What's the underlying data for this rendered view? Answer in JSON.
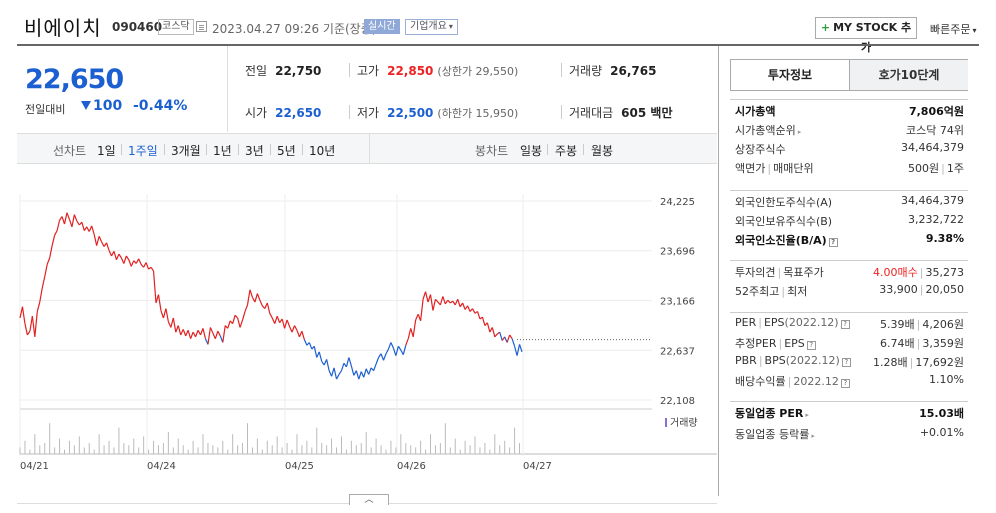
{
  "header": {
    "name": "비에이치",
    "code": "090460",
    "market": "코스닥",
    "datetime": "2023.04.27 09:26 기준(장중)",
    "realtime": "실시간",
    "company_overview": "기업개요",
    "mystock": "MY STOCK 추가",
    "quick_order": "빠른주문"
  },
  "price": {
    "current": "22,650",
    "compare_label": "전일대비",
    "change": "100",
    "rate": "-0.44%"
  },
  "stats": {
    "prev_label": "전일",
    "prev": "22,750",
    "high_label": "고가",
    "high": "22,850",
    "upper_limit": "(상한가 29,550)",
    "volume_label": "거래량",
    "volume": "26,765",
    "open_label": "시가",
    "open": "22,650",
    "low_label": "저가",
    "low": "22,500",
    "lower_limit": "(하한가 15,950)",
    "amount_label": "거래대금",
    "amount": "605 백만"
  },
  "chart_tabs": {
    "line_label": "선차트",
    "line_periods": [
      "1일",
      "1주일",
      "3개월",
      "1년",
      "3년",
      "5년",
      "10년"
    ],
    "active": "1주일",
    "candle_label": "봉차트",
    "candle_periods": [
      "일봉",
      "주봉",
      "월봉"
    ]
  },
  "chart_data": {
    "type": "line",
    "title": "",
    "x_ticks": [
      "04/21",
      "04/24",
      "04/25",
      "04/26",
      "04/27"
    ],
    "y_ticks": [
      24225,
      23696,
      23166,
      22637,
      22108
    ],
    "ylim": [
      22108,
      24225
    ],
    "prev_close": 22750,
    "volume_label": "거래량",
    "colors": {
      "up": "#e22020",
      "down": "#1c5fd1"
    },
    "series": [
      {
        "values": [
          22980,
          23100,
          22920,
          22800,
          22840,
          23000,
          22780,
          23050,
          23150,
          23300,
          23420,
          23550,
          23620,
          23750,
          23860,
          23910,
          24020,
          24060,
          23980,
          24100,
          24030,
          23950,
          24080,
          24010,
          23970,
          24000,
          23910,
          23950,
          23900,
          23960,
          23870,
          23750,
          23850,
          23790,
          23740,
          23780,
          23700,
          23640,
          23690,
          23600,
          23660,
          23620,
          23560,
          23640,
          23600,
          23530,
          23590,
          23560,
          23610,
          23550,
          23520,
          23570,
          23500,
          23520,
          23480,
          23140,
          23230,
          23060,
          22980,
          23080,
          22940,
          22880,
          22980,
          22830,
          22900,
          22800,
          22860,
          22790,
          22850,
          22760,
          22830,
          22780,
          22850,
          22800,
          22870,
          22760,
          22700,
          22880,
          22820,
          22760,
          22840,
          22790,
          22720,
          22900,
          22870,
          22950,
          22920,
          23010,
          22980,
          22880,
          22960,
          23050,
          23120,
          23280,
          23200,
          23150,
          23240,
          23170,
          23110,
          23080,
          23140,
          23030,
          22980,
          22920,
          23000,
          22930,
          22970,
          22870,
          22960,
          22890,
          22830,
          22900,
          22850,
          22780,
          22840,
          22750,
          22690,
          22720,
          22650,
          22680,
          22560,
          22620,
          22520,
          22480,
          22540,
          22420,
          22360,
          22450,
          22330,
          22380,
          22420,
          22500,
          22460,
          22560,
          22470,
          22370,
          22420,
          22330,
          22410,
          22350,
          22440,
          22380,
          22450,
          22420,
          22490,
          22560,
          22600,
          22530,
          22600,
          22650,
          22720,
          22660,
          22580,
          22680,
          22640,
          22590,
          22690,
          22760,
          22870,
          22780,
          22960,
          23020,
          22950,
          23180,
          23260,
          23150,
          23230,
          23060,
          23180,
          23150,
          23120,
          23210,
          23130,
          23170,
          23140,
          23160,
          23120,
          23180,
          23100,
          23140,
          23070,
          23110,
          23050,
          23080,
          23030,
          23050,
          22970,
          22990,
          22900,
          22930,
          22830,
          22880,
          22780,
          22810,
          22830,
          22740,
          22780,
          22720,
          22800,
          22760,
          22680,
          22580,
          22700,
          22620
        ]
      }
    ]
  },
  "right_panel": {
    "tab_active": "투자정보",
    "tab_other": "호가10단계",
    "g1": [
      {
        "l": "시가총액",
        "r": "7,806억원"
      },
      {
        "l": "시가총액순위",
        "r": "코스닥 74위"
      },
      {
        "l": "상장주식수",
        "r": "34,464,379"
      },
      {
        "l": "액면가",
        "l2": "매매단위",
        "r": "500원",
        "r2": "1주"
      }
    ],
    "g2": [
      {
        "l": "외국인한도주식수(A)",
        "r": "34,464,379"
      },
      {
        "l": "외국인보유주식수(B)",
        "r": "3,232,722"
      },
      {
        "l": "외국인소진율(B/A)",
        "r": "9.38%"
      }
    ],
    "g3": [
      {
        "l": "투자의견",
        "l2": "목표주가",
        "r": "4.00매수",
        "r2": "35,273"
      },
      {
        "l": "52주최고",
        "l2": "최저",
        "r": "33,900",
        "r2": "20,050"
      }
    ],
    "g4": [
      {
        "l": "PER",
        "l2": "EPS",
        "l3": "(2022.12)",
        "r": "5.39배",
        "r2": "4,206원"
      },
      {
        "l": "추정PER",
        "l2": "EPS",
        "r": "6.74배",
        "r2": "3,359원"
      },
      {
        "l": "PBR",
        "l2": "BPS",
        "l3": "(2022.12)",
        "r": "1.28배",
        "r2": "17,692원"
      },
      {
        "l": "배당수익률",
        "l2": "2022.12",
        "r": "1.10%"
      }
    ],
    "g5": [
      {
        "l": "동일업종 PER",
        "r": "15.03배"
      },
      {
        "l": "동일업종 등락률",
        "r": "+0.01%"
      }
    ]
  }
}
